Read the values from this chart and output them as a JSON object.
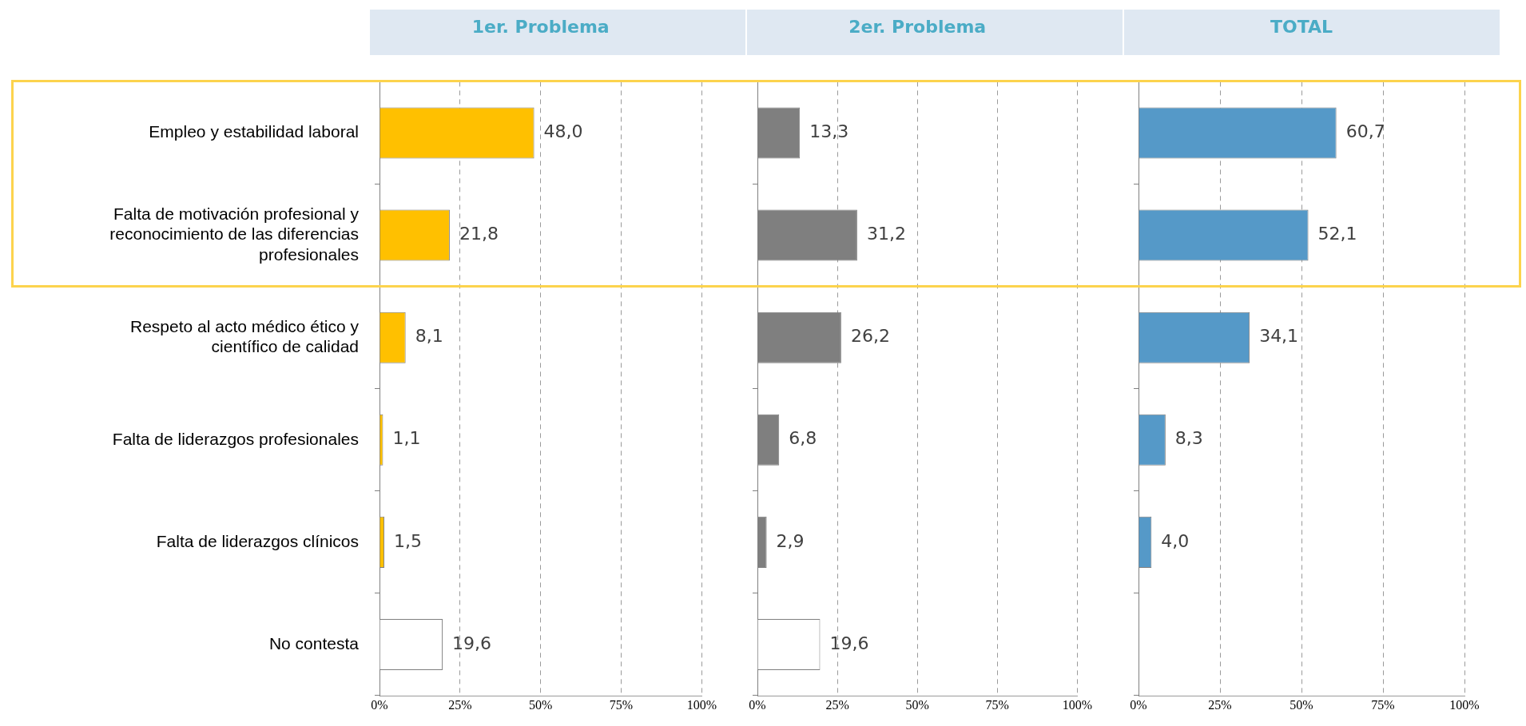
{
  "chart_data": [
    {
      "type": "bar",
      "orientation": "horizontal",
      "title": "1er. Problema",
      "categories": [
        "Empleo y estabilidad laboral",
        "Falta de motivación profesional y reconocimiento de las diferencias profesionales",
        "Respeto al acto médico ético y científico de calidad",
        "Falta de liderazgos profesionales",
        "Falta de liderazgos clínicos",
        "No contesta"
      ],
      "values": [
        48.0,
        21.8,
        8.1,
        1.1,
        1.5,
        19.6
      ],
      "colors": [
        "#ffc000",
        "#ffc000",
        "#ffc000",
        "#ffc000",
        "#ffc000",
        "#ffffff"
      ],
      "value_labels": [
        "48,0",
        "21,8",
        "8,1",
        "1,1",
        "1,5",
        "19,6"
      ],
      "xlim": [
        0,
        100
      ],
      "xticks": [
        {
          "value": 0,
          "label": "0%"
        },
        {
          "value": 25,
          "label": "25%"
        },
        {
          "value": 50,
          "label": "50%"
        },
        {
          "value": 75,
          "label": "75%"
        },
        {
          "value": 100,
          "label": "100%"
        }
      ],
      "grid": "x"
    },
    {
      "type": "bar",
      "orientation": "horizontal",
      "title": "2er. Problema",
      "categories": [
        null,
        null,
        null,
        null,
        null,
        null
      ],
      "values": [
        13.3,
        31.2,
        26.2,
        6.8,
        2.9,
        19.6
      ],
      "colors": [
        "#7f7f7f",
        "#7f7f7f",
        "#7f7f7f",
        "#7f7f7f",
        "#7f7f7f",
        "#ffffff"
      ],
      "value_labels": [
        "13,3",
        "31,2",
        "26,2",
        "6,8",
        "2,9",
        "19,6"
      ],
      "xlim": [
        0,
        100
      ],
      "xticks": [
        {
          "value": 0,
          "label": "0%"
        },
        {
          "value": 25,
          "label": "25%"
        },
        {
          "value": 50,
          "label": "50%"
        },
        {
          "value": 75,
          "label": "75%"
        },
        {
          "value": 100,
          "label": "100%"
        }
      ],
      "grid": "x",
      "tick_labels": "x"
    },
    {
      "type": "bar",
      "orientation": "horizontal",
      "title": "TOTAL",
      "categories": [
        null,
        null,
        null,
        null,
        null,
        null
      ],
      "values": [
        60.7,
        52.1,
        34.1,
        8.3,
        4.0,
        null
      ],
      "colors": [
        "#5599c8",
        "#5599c8",
        "#5599c8",
        "#5599c8",
        "#5599c8",
        "#5599c8"
      ],
      "value_labels": [
        "60,7",
        "52,1",
        "34,1",
        "8,3",
        "4,0",
        null
      ],
      "xlim": [
        0,
        100
      ],
      "xticks": [
        {
          "value": 0,
          "label": "0%"
        },
        {
          "value": 25,
          "label": "25%"
        },
        {
          "value": 50,
          "label": "50%"
        },
        {
          "value": 75,
          "label": "75%"
        },
        {
          "value": 100,
          "label": "100%"
        }
      ],
      "grid": "x",
      "tick_labels": "x"
    }
  ]
}
